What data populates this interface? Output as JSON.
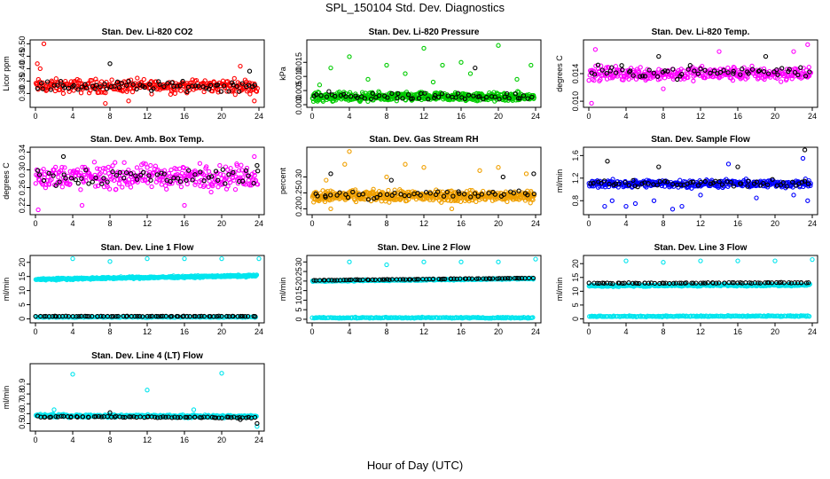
{
  "header": {
    "title": "SPL_150104  Std. Dev. Diagnostics"
  },
  "footer": {
    "xlabel": "Hour of Day (UTC)"
  },
  "colors": {
    "red": "#ff0000",
    "green": "#00cc00",
    "magenta": "#ff00ff",
    "orange": "#f0a000",
    "blue": "#0000ff",
    "cyan": "#00e5ee",
    "black": "#000000"
  },
  "chart_data": [
    {
      "type": "scatter",
      "title": "Stan. Dev. Li-820 CO2",
      "ylabel": "Licor ppm",
      "xlim": [
        0,
        24
      ],
      "ylim": [
        0.255,
        0.505
      ],
      "xticks": [
        0,
        4,
        8,
        12,
        16,
        20,
        24
      ],
      "yticks": [
        0.3,
        0.35,
        0.4,
        0.45,
        0.5
      ],
      "ytick_labels": [
        "0.30",
        "0.35",
        "0.40",
        "0.45",
        "0.50"
      ],
      "series": [
        {
          "color": "red",
          "bands": [
            {
              "lo": 0.29,
              "hi": 0.37,
              "n": 320
            }
          ],
          "outliers": [
            [
              0.9,
              0.5
            ],
            [
              0.2,
              0.42
            ],
            [
              0.5,
              0.4
            ],
            [
              7.5,
              0.26
            ],
            [
              10,
              0.27
            ],
            [
              22,
              0.41
            ],
            [
              23.5,
              0.27
            ]
          ]
        },
        {
          "color": "black",
          "bands": [
            {
              "lo": 0.3,
              "hi": 0.36,
              "n": 70
            }
          ],
          "outliers": [
            [
              8,
              0.42
            ],
            [
              23,
              0.39
            ]
          ]
        }
      ]
    },
    {
      "type": "scatter",
      "title": "Stan. Dev. Li-820 Pressure",
      "ylabel": "kPa",
      "xlim": [
        0,
        24
      ],
      "ylim": [
        0,
        0.022
      ],
      "xticks": [
        0,
        4,
        8,
        12,
        16,
        20,
        24
      ],
      "yticks": [
        0.0,
        0.005,
        0.01,
        0.015
      ],
      "ytick_labels": [
        "0.000",
        "0.005",
        "0.010",
        "0.015"
      ],
      "series": [
        {
          "color": "green",
          "bands": [
            {
              "lo": 0.0005,
              "hi": 0.005,
              "n": 520
            }
          ],
          "outliers": [
            [
              4,
              0.017
            ],
            [
              8,
              0.014
            ],
            [
              12,
              0.02
            ],
            [
              14,
              0.014
            ],
            [
              16,
              0.015
            ],
            [
              20,
              0.021
            ],
            [
              23.5,
              0.014
            ],
            [
              2,
              0.013
            ],
            [
              6,
              0.009
            ],
            [
              10,
              0.011
            ],
            [
              17,
              0.011
            ],
            [
              22,
              0.009
            ],
            [
              0.8,
              0.007
            ],
            [
              13,
              0.008
            ]
          ]
        },
        {
          "color": "black",
          "bands": [
            {
              "lo": 0.001,
              "hi": 0.005,
              "n": 60
            }
          ],
          "outliers": [
            [
              17.5,
              0.013
            ]
          ]
        }
      ]
    },
    {
      "type": "scatter",
      "title": "Stan. Dev. Li-820 Temp.",
      "ylabel": "degrees C",
      "xlim": [
        0,
        24
      ],
      "ylim": [
        0.0095,
        0.0185
      ],
      "xticks": [
        0,
        4,
        8,
        12,
        16,
        20,
        24
      ],
      "yticks": [
        0.01,
        0.014
      ],
      "ytick_labels": [
        "0.010",
        "0.014"
      ],
      "series": [
        {
          "color": "magenta",
          "bands": [
            {
              "lo": 0.0125,
              "hi": 0.0155,
              "n": 340
            }
          ],
          "outliers": [
            [
              0.7,
              0.0175
            ],
            [
              0.3,
              0.0097
            ],
            [
              23.5,
              0.0182
            ],
            [
              22,
              0.0172
            ],
            [
              8,
              0.0118
            ],
            [
              14,
              0.0172
            ]
          ]
        },
        {
          "color": "black",
          "bands": [
            {
              "lo": 0.013,
              "hi": 0.0155,
              "n": 60
            }
          ],
          "outliers": [
            [
              7.5,
              0.0165
            ],
            [
              19,
              0.0165
            ]
          ]
        }
      ]
    },
    {
      "type": "scatter",
      "title": "Stan. Dev. Amb. Box Temp.",
      "ylabel": "degrees C",
      "xlim": [
        0,
        24
      ],
      "ylim": [
        0.205,
        0.345
      ],
      "xticks": [
        0,
        4,
        8,
        12,
        16,
        20,
        24
      ],
      "yticks": [
        0.22,
        0.26,
        0.3,
        0.34
      ],
      "ytick_labels": [
        "0.22",
        "0.26",
        "0.30",
        "0.34"
      ],
      "series": [
        {
          "color": "magenta",
          "bands": [
            {
              "lo": 0.245,
              "hi": 0.325,
              "n": 340
            }
          ],
          "outliers": [
            [
              0.3,
              0.21
            ],
            [
              5,
              0.22
            ],
            [
              16,
              0.22
            ],
            [
              23.5,
              0.33
            ]
          ]
        },
        {
          "color": "black",
          "bands": [
            {
              "lo": 0.255,
              "hi": 0.315,
              "n": 60
            }
          ],
          "outliers": [
            [
              3,
              0.33
            ],
            [
              23.8,
              0.31
            ]
          ]
        }
      ]
    },
    {
      "type": "scatter",
      "title": "Stan. Dev. Gas Stream RH",
      "ylabel": "percent",
      "xlim": [
        0,
        24
      ],
      "ylim": [
        0.19,
        0.385
      ],
      "xticks": [
        0,
        4,
        8,
        12,
        16,
        20,
        24
      ],
      "yticks": [
        0.2,
        0.25,
        0.3
      ],
      "ytick_labels": [
        "0.20",
        "0.25",
        "0.30"
      ],
      "series": [
        {
          "color": "orange",
          "bands": [
            {
              "lo": 0.215,
              "hi": 0.265,
              "n": 520
            }
          ],
          "outliers": [
            [
              4,
              0.38
            ],
            [
              3.5,
              0.34
            ],
            [
              10,
              0.34
            ],
            [
              12,
              0.33
            ],
            [
              18,
              0.32
            ],
            [
              20,
              0.33
            ],
            [
              1.5,
              0.29
            ],
            [
              8,
              0.3
            ],
            [
              2,
              0.2
            ],
            [
              15,
              0.2
            ],
            [
              23,
              0.31
            ]
          ]
        },
        {
          "color": "black",
          "bands": [
            {
              "lo": 0.225,
              "hi": 0.265,
              "n": 50
            }
          ],
          "outliers": [
            [
              2,
              0.31
            ],
            [
              20.5,
              0.3
            ],
            [
              23.8,
              0.31
            ],
            [
              8.5,
              0.29
            ]
          ]
        }
      ]
    },
    {
      "type": "scatter",
      "title": "Stan. Dev. Sample Flow",
      "ylabel": "ml/min",
      "xlim": [
        0,
        24
      ],
      "ylim": [
        0.6,
        1.7
      ],
      "xticks": [
        0,
        4,
        8,
        12,
        16,
        20,
        24
      ],
      "yticks": [
        0.8,
        1.2,
        1.6
      ],
      "ytick_labels": [
        "0.8",
        "1.2",
        "1.6"
      ],
      "series": [
        {
          "color": "blue",
          "bands": [
            {
              "lo": 1.0,
              "hi": 1.2,
              "n": 360
            }
          ],
          "outliers": [
            [
              1.7,
              0.7
            ],
            [
              4,
              0.7
            ],
            [
              9,
              0.65
            ],
            [
              10,
              0.7
            ],
            [
              5,
              0.75
            ],
            [
              7,
              0.8
            ],
            [
              23.5,
              0.8
            ],
            [
              23,
              1.55
            ],
            [
              15,
              1.45
            ],
            [
              2.5,
              0.8
            ],
            [
              12,
              0.9
            ],
            [
              18,
              0.85
            ],
            [
              22,
              0.9
            ]
          ]
        },
        {
          "color": "black",
          "bands": [
            {
              "lo": 1.0,
              "hi": 1.2,
              "n": 60
            }
          ],
          "outliers": [
            [
              23.2,
              1.7
            ],
            [
              2,
              1.5
            ],
            [
              16,
              1.4
            ],
            [
              7.5,
              1.4
            ]
          ]
        }
      ]
    },
    {
      "type": "scatter",
      "title": "Stan. Dev. Line 1 Flow",
      "ylabel": "ml/min",
      "xlim": [
        0,
        24
      ],
      "ylim": [
        -0.5,
        21.5
      ],
      "xticks": [
        0,
        4,
        8,
        12,
        16,
        20,
        24
      ],
      "yticks": [
        0,
        5,
        10,
        15,
        20
      ],
      "ytick_labels": [
        "0",
        "5",
        "10",
        "15",
        "20"
      ],
      "series": [
        {
          "color": "cyan",
          "trend": [
            0,
            14.0,
            24,
            15.3
          ],
          "spread": 0.5,
          "n": 420,
          "outliers": [
            [
              4,
              21.3
            ],
            [
              8,
              20.3
            ],
            [
              12,
              21.3
            ],
            [
              16,
              21.3
            ],
            [
              20,
              21.3
            ],
            [
              24,
              21.3
            ]
          ]
        },
        {
          "color": "cyan",
          "trend": [
            0,
            0.6,
            24,
            0.6
          ],
          "spread": 0.2,
          "n": 160,
          "outliers": []
        },
        {
          "color": "black",
          "trend": [
            0,
            0.9,
            24,
            0.9
          ],
          "spread": 0.1,
          "n": 75,
          "outliers": []
        }
      ]
    },
    {
      "type": "scatter",
      "title": "Stan. Dev. Line 2 Flow",
      "ylabel": "ml/min",
      "xlim": [
        0,
        24
      ],
      "ylim": [
        -0.5,
        32
      ],
      "xticks": [
        0,
        4,
        8,
        12,
        16,
        20,
        24
      ],
      "yticks": [
        0,
        5,
        10,
        15,
        20,
        25,
        30
      ],
      "ytick_labels": [
        "0",
        "5",
        "10",
        "15",
        "20",
        "25",
        "30"
      ],
      "series": [
        {
          "color": "cyan",
          "trend": [
            0,
            20.0,
            24,
            21.3
          ],
          "spread": 0.5,
          "n": 340,
          "outliers": [
            [
              4,
              30
            ],
            [
              8,
              28.5
            ],
            [
              12,
              30
            ],
            [
              16,
              30
            ],
            [
              20,
              30
            ],
            [
              24,
              31.5
            ]
          ]
        },
        {
          "color": "cyan",
          "trend": [
            0,
            0.8,
            24,
            0.8
          ],
          "spread": 0.4,
          "n": 200,
          "outliers": []
        },
        {
          "color": "black",
          "trend": [
            0,
            20.4,
            24,
            21.6
          ],
          "spread": 0.2,
          "n": 75,
          "outliers": []
        }
      ]
    },
    {
      "type": "scatter",
      "title": "Stan. Dev. Line 3 Flow",
      "ylabel": "ml/min",
      "xlim": [
        0,
        24
      ],
      "ylim": [
        -0.5,
        22
      ],
      "xticks": [
        0,
        4,
        8,
        12,
        16,
        20,
        24
      ],
      "yticks": [
        0,
        5,
        10,
        15,
        20
      ],
      "ytick_labels": [
        "0",
        "5",
        "10",
        "15",
        "20"
      ],
      "series": [
        {
          "color": "cyan",
          "trend": [
            0,
            12.0,
            24,
            12.3
          ],
          "spread": 0.5,
          "n": 320,
          "outliers": [
            [
              4,
              21
            ],
            [
              8,
              20.5
            ],
            [
              12,
              21
            ],
            [
              16,
              21
            ],
            [
              20,
              21
            ],
            [
              24,
              21.5
            ]
          ]
        },
        {
          "color": "cyan",
          "trend": [
            0,
            0.9,
            24,
            1.0
          ],
          "spread": 0.3,
          "n": 200,
          "outliers": []
        },
        {
          "color": "black",
          "trend": [
            0,
            12.9,
            24,
            13.1
          ],
          "spread": 0.2,
          "n": 75,
          "outliers": []
        }
      ]
    },
    {
      "type": "scatter",
      "title": "Stan. Dev. Line 4 (LT) Flow",
      "ylabel": "ml/min",
      "xlim": [
        0,
        24
      ],
      "ylim": [
        0.45,
        1.08
      ],
      "xticks": [
        0,
        4,
        8,
        12,
        16,
        20,
        24
      ],
      "yticks": [
        0.5,
        0.6,
        0.7,
        0.8,
        0.9
      ],
      "ytick_labels": [
        "0.5",
        "0.6",
        "0.7",
        "0.8",
        "0.9"
      ],
      "series": [
        {
          "color": "cyan",
          "trend": [
            0,
            0.58,
            24,
            0.57
          ],
          "spread": 0.02,
          "n": 420,
          "outliers": [
            [
              4,
              1.0
            ],
            [
              12,
              0.84
            ],
            [
              20,
              1.01
            ],
            [
              2,
              0.64
            ],
            [
              17,
              0.64
            ],
            [
              23.8,
              0.47
            ]
          ]
        },
        {
          "color": "black",
          "trend": [
            0,
            0.57,
            24,
            0.56
          ],
          "spread": 0.012,
          "n": 75,
          "outliers": [
            [
              8,
              0.61
            ],
            [
              22,
              0.54
            ],
            [
              23.8,
              0.5
            ]
          ]
        }
      ]
    }
  ]
}
